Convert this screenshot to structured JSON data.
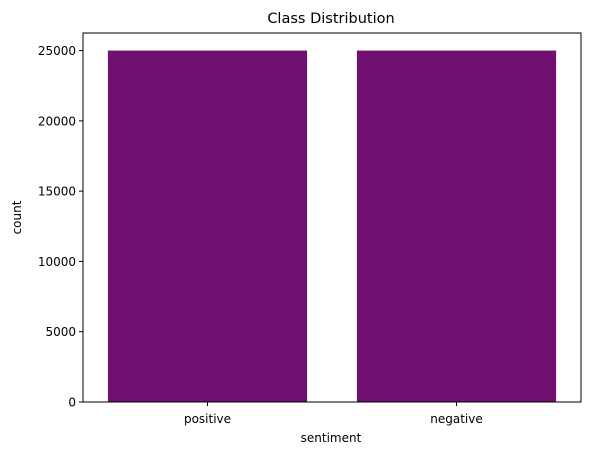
{
  "chart_data": {
    "type": "bar",
    "title": "Class Distribution",
    "xlabel": "sentiment",
    "ylabel": "count",
    "categories": [
      "positive",
      "negative"
    ],
    "values": [
      25000,
      25000
    ],
    "ylim": [
      0,
      26250
    ],
    "yticks": [
      0,
      5000,
      10000,
      15000,
      20000,
      25000
    ],
    "ytick_labels": [
      "0",
      "5000",
      "10000",
      "15000",
      "20000",
      "25000"
    ],
    "grid": false,
    "legend": "none",
    "bar_color": "#701070"
  }
}
